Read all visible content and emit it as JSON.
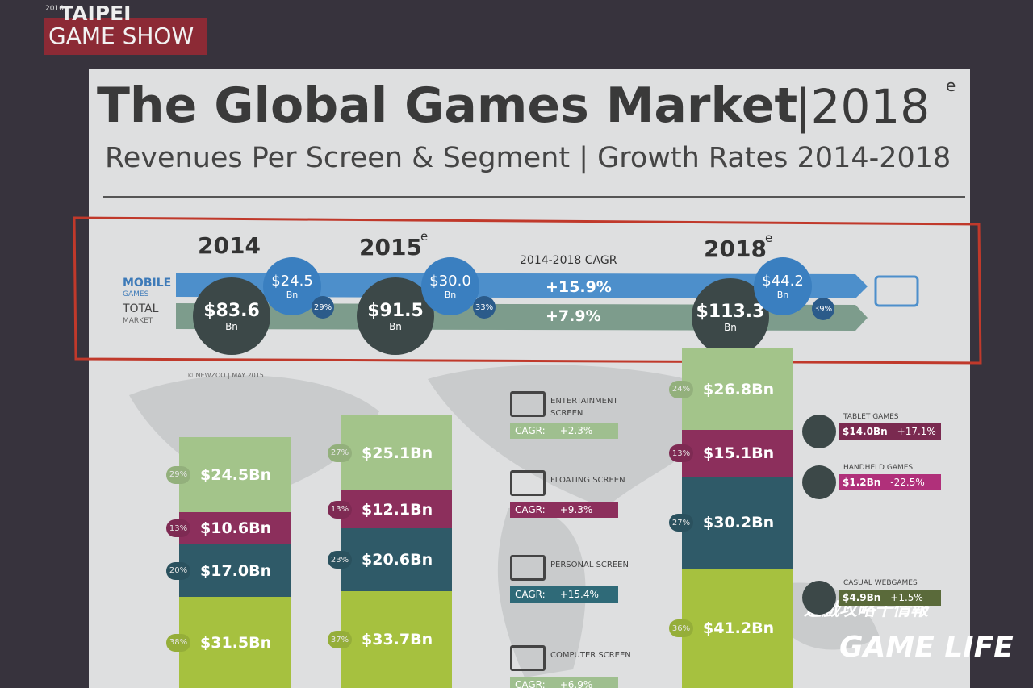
{
  "logo": {
    "year": "2016",
    "line1": "TAIPEI",
    "line2": "GAME SHOW"
  },
  "title": "The Global Games Market",
  "title_year": "|2018",
  "title_sup": "e",
  "subtitle": "Revenues Per Screen & Segment | Growth Rates 2014-2018",
  "summary": {
    "legend": [
      "MOBILE",
      "GAMES",
      "TOTAL",
      "MARKET"
    ],
    "cagr_label": "2014-2018 CAGR",
    "mobile_cagr": "+15.9%",
    "total_cagr": "+7.9%",
    "years": [
      {
        "year": "2014",
        "total": "$83.6",
        "mobile": "$24.5",
        "unit": "Bn",
        "share": "29%"
      },
      {
        "year": "2015",
        "sup": "e",
        "total": "$91.5",
        "mobile": "$30.0",
        "unit": "Bn",
        "share": "33%"
      },
      {
        "year": "2018",
        "sup": "e",
        "total": "$113.3",
        "mobile": "$44.2",
        "unit": "Bn",
        "share": "39%"
      }
    ]
  },
  "credit": "© NEWZOO | MAY 2015",
  "bars": [
    {
      "segments": [
        {
          "share": "29%",
          "value": "$24.5Bn"
        },
        {
          "share": "13%",
          "value": "$10.6Bn"
        },
        {
          "share": "20%",
          "value": "$17.0Bn"
        },
        {
          "share": "38%",
          "value": "$31.5Bn"
        }
      ]
    },
    {
      "segments": [
        {
          "share": "27%",
          "value": "$25.1Bn"
        },
        {
          "share": "13%",
          "value": "$12.1Bn"
        },
        {
          "share": "23%",
          "value": "$20.6Bn"
        },
        {
          "share": "37%",
          "value": "$33.7Bn"
        }
      ]
    },
    {
      "segments": [
        {
          "share": "24%",
          "value": "$26.8Bn"
        },
        {
          "share": "13%",
          "value": "$15.1Bn"
        },
        {
          "share": "27%",
          "value": "$30.2Bn"
        },
        {
          "share": "36%",
          "value": "$41.2Bn"
        }
      ]
    }
  ],
  "screens": [
    {
      "name": "ENTERTAINMENT SCREEN",
      "cagr_label": "CAGR:",
      "cagr": "+2.3%"
    },
    {
      "name": "FLOATING SCREEN",
      "cagr_label": "CAGR:",
      "cagr": "+9.3%"
    },
    {
      "name": "PERSONAL SCREEN",
      "cagr_label": "CAGR:",
      "cagr": "+15.4%"
    },
    {
      "name": "COMPUTER SCREEN",
      "cagr_label": "CAGR:",
      "cagr": "+6.9%"
    }
  ],
  "side_segments": [
    {
      "name": "TABLET GAMES",
      "value": "$14.0Bn",
      "growth": "+17.1%"
    },
    {
      "name": "HANDHELD GAMES",
      "value": "$1.2Bn",
      "growth": "-22.5%"
    },
    {
      "name": "CASUAL WEBGAMES",
      "value": "$4.9Bn",
      "growth": "+1.5%"
    }
  ],
  "watermark": {
    "chinese": "遊戲攻略十情報",
    "brand": "GAME LIFE"
  }
}
